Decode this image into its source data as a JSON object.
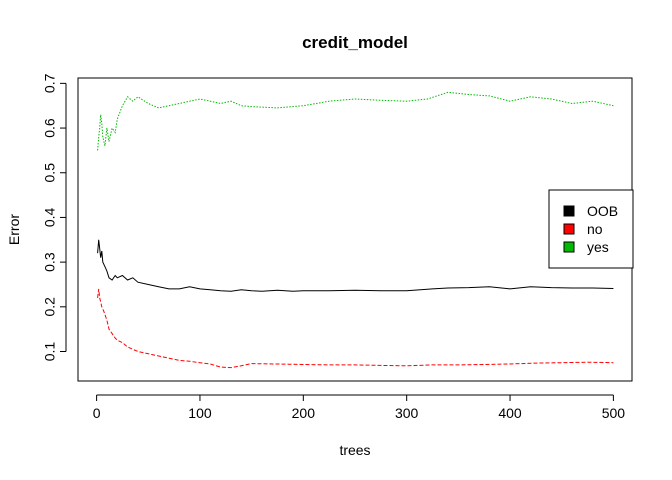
{
  "chart_data": {
    "type": "line",
    "title": "credit_model",
    "xlabel": "trees",
    "ylabel": "Error",
    "xlim": [
      0,
      500
    ],
    "ylim": [
      0.05,
      0.7
    ],
    "xticks": [
      0,
      100,
      200,
      300,
      400,
      500
    ],
    "yticks": [
      0.1,
      0.2,
      0.3,
      0.4,
      0.5,
      0.6,
      0.7
    ],
    "grid": false,
    "legend_position": "right",
    "series": [
      {
        "name": "OOB",
        "color": "#000000",
        "dash": "solid",
        "x": [
          1,
          2,
          3,
          4,
          5,
          6,
          8,
          10,
          12,
          15,
          18,
          20,
          25,
          30,
          35,
          40,
          50,
          60,
          70,
          80,
          90,
          100,
          110,
          120,
          130,
          140,
          150,
          160,
          175,
          190,
          200,
          225,
          250,
          275,
          300,
          325,
          340,
          360,
          380,
          400,
          420,
          440,
          460,
          480,
          500
        ],
        "y": [
          0.32,
          0.35,
          0.33,
          0.31,
          0.325,
          0.3,
          0.29,
          0.28,
          0.265,
          0.26,
          0.27,
          0.265,
          0.27,
          0.26,
          0.265,
          0.255,
          0.25,
          0.245,
          0.24,
          0.24,
          0.245,
          0.24,
          0.238,
          0.236,
          0.235,
          0.238,
          0.236,
          0.235,
          0.237,
          0.235,
          0.236,
          0.236,
          0.237,
          0.236,
          0.236,
          0.24,
          0.242,
          0.243,
          0.245,
          0.24,
          0.245,
          0.243,
          0.242,
          0.242,
          0.241
        ]
      },
      {
        "name": "no",
        "color": "#ff0000",
        "dash": "dashed",
        "x": [
          1,
          2,
          3,
          5,
          7,
          10,
          12,
          15,
          18,
          20,
          25,
          30,
          35,
          40,
          50,
          60,
          70,
          80,
          90,
          100,
          110,
          120,
          130,
          140,
          150,
          175,
          200,
          225,
          250,
          275,
          300,
          325,
          350,
          375,
          400,
          425,
          450,
          475,
          500
        ],
        "y": [
          0.22,
          0.24,
          0.22,
          0.2,
          0.19,
          0.17,
          0.15,
          0.14,
          0.13,
          0.125,
          0.12,
          0.11,
          0.105,
          0.1,
          0.095,
          0.09,
          0.085,
          0.08,
          0.078,
          0.075,
          0.072,
          0.065,
          0.064,
          0.068,
          0.073,
          0.072,
          0.071,
          0.07,
          0.07,
          0.069,
          0.068,
          0.07,
          0.07,
          0.071,
          0.072,
          0.074,
          0.075,
          0.076,
          0.075
        ]
      },
      {
        "name": "yes",
        "color": "#00bb00",
        "dash": "dotted",
        "x": [
          1,
          2,
          3,
          4,
          5,
          6,
          8,
          10,
          12,
          15,
          18,
          20,
          25,
          30,
          35,
          40,
          50,
          60,
          70,
          80,
          90,
          100,
          110,
          120,
          130,
          140,
          150,
          175,
          200,
          225,
          250,
          275,
          300,
          320,
          340,
          360,
          380,
          400,
          420,
          440,
          460,
          480,
          500
        ],
        "y": [
          0.55,
          0.58,
          0.6,
          0.63,
          0.61,
          0.58,
          0.56,
          0.6,
          0.57,
          0.6,
          0.59,
          0.62,
          0.65,
          0.67,
          0.66,
          0.67,
          0.655,
          0.645,
          0.65,
          0.655,
          0.66,
          0.665,
          0.66,
          0.655,
          0.66,
          0.65,
          0.648,
          0.645,
          0.65,
          0.66,
          0.665,
          0.662,
          0.66,
          0.665,
          0.68,
          0.675,
          0.672,
          0.66,
          0.67,
          0.665,
          0.655,
          0.66,
          0.65
        ]
      }
    ]
  }
}
